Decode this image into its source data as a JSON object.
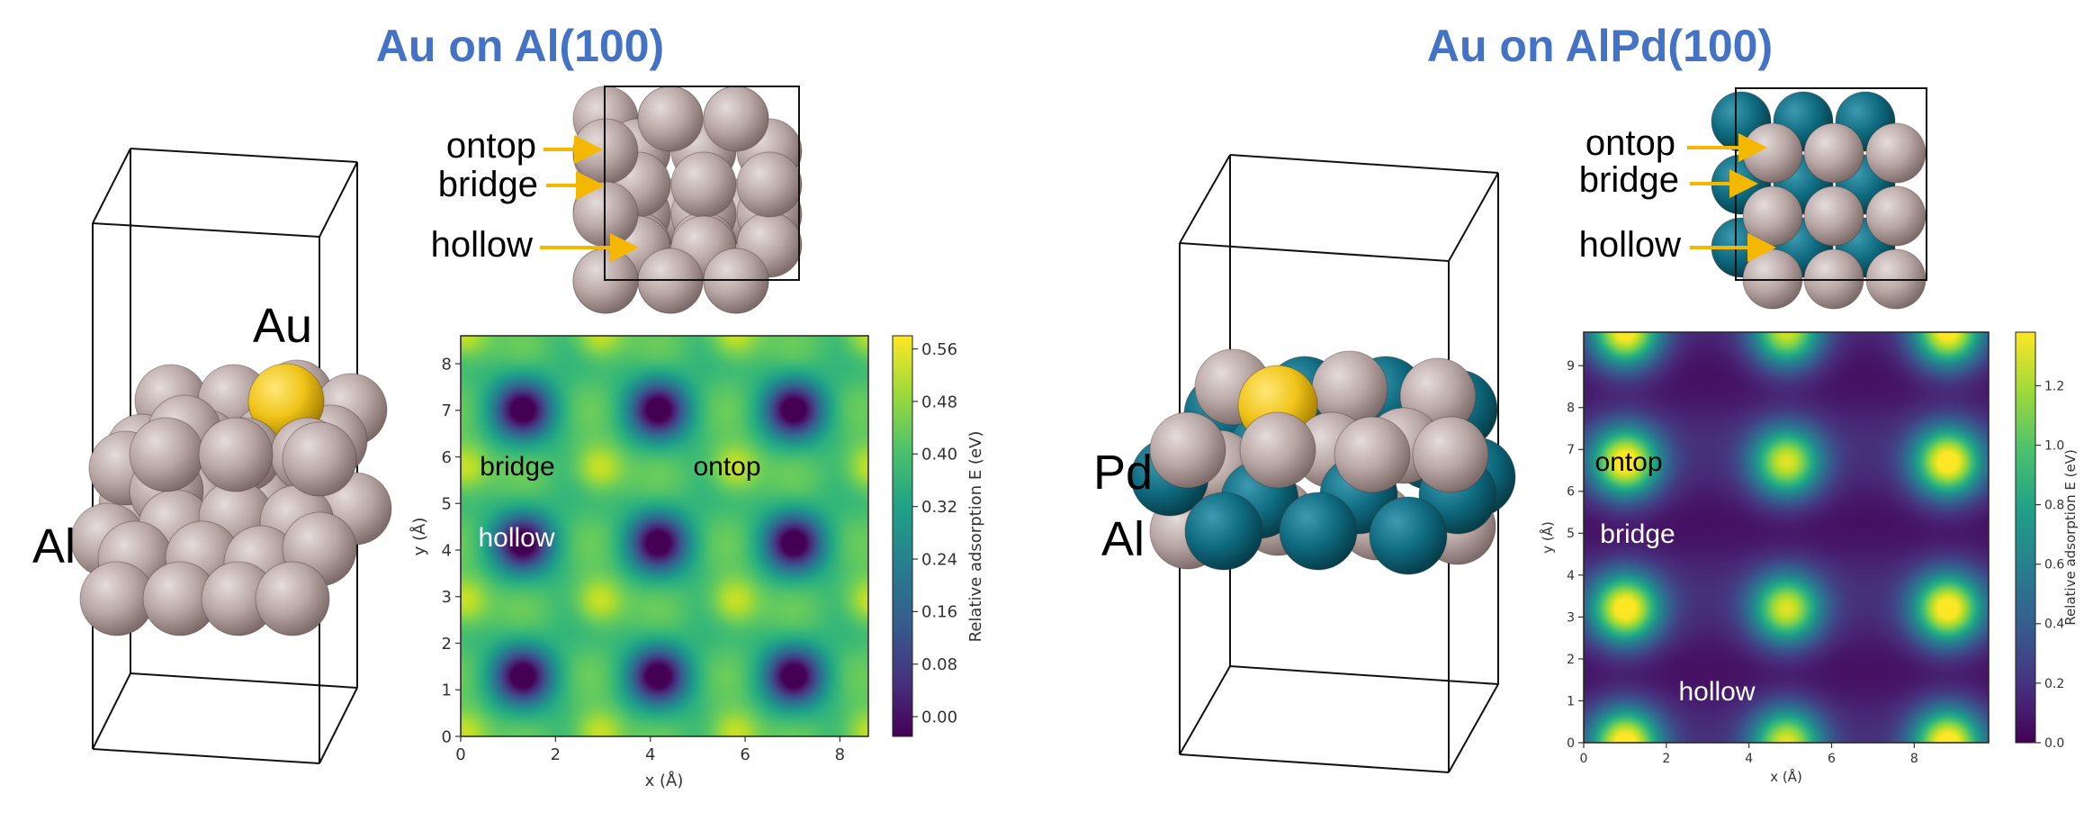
{
  "colors": {
    "title": "#4472c4",
    "arrow": "#f5b800",
    "al": "#b9a9a7",
    "pd": "#0f6b80",
    "au": "#f0c419"
  },
  "panels": [
    {
      "title": "Au on Al(100)",
      "element_labels": [
        "Al"
      ],
      "adsorbate_label": "Au",
      "site_labels": [
        "ontop",
        "bridge",
        "hollow"
      ],
      "map_labels": [
        "bridge",
        "ontop",
        "hollow"
      ],
      "chart_data": {
        "type": "heatmap",
        "xlabel": "x (Å)",
        "ylabel": "y (Å)",
        "colorbar_label": "Relative adsorption E (eV)",
        "xlim": [
          0,
          8.6
        ],
        "ylim": [
          0,
          8.6
        ],
        "xticks": [
          0,
          2,
          4,
          6,
          8
        ],
        "yticks": [
          0,
          1,
          2,
          3,
          4,
          5,
          6,
          7,
          8
        ],
        "cticks": [
          "0.00",
          "0.08",
          "0.16",
          "0.24",
          "0.32",
          "0.40",
          "0.48",
          "0.56"
        ],
        "crange": [
          -0.03,
          0.58
        ],
        "colormap": "viridis",
        "period": 2.86,
        "min_offset": [
          1.3,
          1.3
        ],
        "max_offset": [
          2.9,
          2.9
        ],
        "min_value": -0.03,
        "max_value": 0.58
      }
    },
    {
      "title": "Au on AlPd(100)",
      "element_labels": [
        "Pd",
        "Al"
      ],
      "adsorbate_label": "",
      "site_labels": [
        "ontop",
        "bridge",
        "hollow"
      ],
      "map_labels": [
        "ontop",
        "bridge",
        "hollow"
      ],
      "chart_data": {
        "type": "heatmap",
        "xlabel": "x (Å)",
        "ylabel": "y (Å)",
        "colorbar_label": "Relative adsorption E (eV)",
        "xlim": [
          0,
          9.8
        ],
        "ylim": [
          0,
          9.8
        ],
        "xticks": [
          0,
          2,
          4,
          6,
          8
        ],
        "yticks": [
          0,
          1,
          2,
          3,
          4,
          5,
          6,
          7,
          8,
          9
        ],
        "cticks": [
          "0.0",
          "0.2",
          "0.4",
          "0.6",
          "0.8",
          "1.0",
          "1.2"
        ],
        "crange": [
          0,
          1.38
        ],
        "colormap": "viridis",
        "hotspots": [
          [
            1.0,
            3.2,
            1.3
          ],
          [
            4.9,
            3.2,
            1.15
          ],
          [
            8.8,
            3.2,
            1.3
          ],
          [
            1.0,
            6.7,
            1.3
          ],
          [
            4.9,
            6.7,
            1.15
          ],
          [
            8.8,
            6.7,
            1.3
          ],
          [
            1.0,
            0.0,
            1.3
          ],
          [
            4.9,
            0.0,
            1.15
          ],
          [
            8.8,
            0.0,
            1.3
          ],
          [
            1.0,
            9.8,
            1.3
          ],
          [
            4.9,
            9.8,
            1.15
          ],
          [
            8.8,
            9.8,
            1.3
          ]
        ]
      }
    }
  ]
}
